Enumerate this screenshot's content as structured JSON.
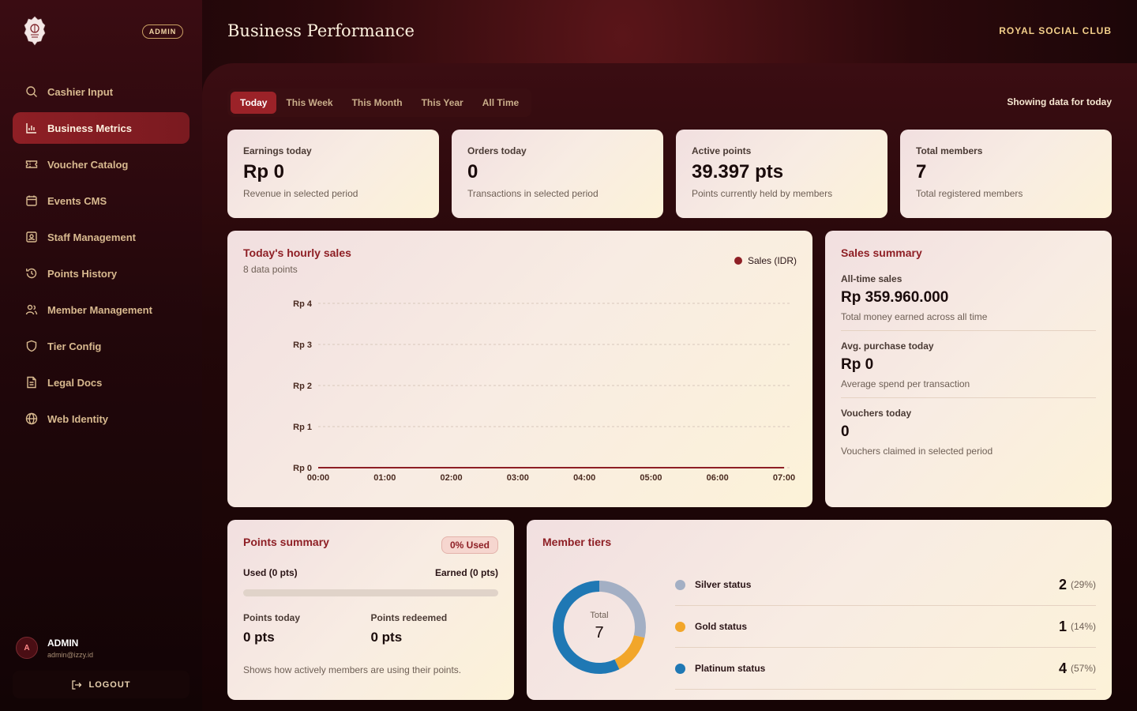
{
  "sidebar": {
    "role_badge": "ADMIN",
    "items": [
      {
        "label": "Cashier Input",
        "icon": "search-icon"
      },
      {
        "label": "Business Metrics",
        "icon": "bar-chart-icon",
        "active": true
      },
      {
        "label": "Voucher Catalog",
        "icon": "ticket-icon"
      },
      {
        "label": "Events CMS",
        "icon": "calendar-icon"
      },
      {
        "label": "Staff Management",
        "icon": "id-badge-icon"
      },
      {
        "label": "Points History",
        "icon": "history-icon"
      },
      {
        "label": "Member Management",
        "icon": "users-icon"
      },
      {
        "label": "Tier Config",
        "icon": "shield-icon"
      },
      {
        "label": "Legal Docs",
        "icon": "document-icon"
      },
      {
        "label": "Web Identity",
        "icon": "globe-icon"
      }
    ],
    "user": {
      "initial": "A",
      "name": "ADMIN",
      "email": "admin@izzy.id"
    },
    "logout_label": "LOGOUT"
  },
  "header": {
    "title": "Business Performance",
    "brand": "ROYAL SOCIAL CLUB"
  },
  "filters": {
    "tabs": [
      "Today",
      "This Week",
      "This Month",
      "This Year",
      "All Time"
    ],
    "active": "Today",
    "status_text": "Showing data for today"
  },
  "stats": [
    {
      "label": "Earnings today",
      "value": "Rp 0",
      "sub": "Revenue in selected period"
    },
    {
      "label": "Orders today",
      "value": "0",
      "sub": "Transactions in selected period"
    },
    {
      "label": "Active points",
      "value": "39.397 pts",
      "sub": "Points currently held by members"
    },
    {
      "label": "Total members",
      "value": "7",
      "sub": "Total registered members"
    }
  ],
  "hourly_chart": {
    "title": "Today's hourly sales",
    "subtitle": "8 data points"
  },
  "chart_data": {
    "type": "line",
    "x": [
      "00:00",
      "01:00",
      "02:00",
      "03:00",
      "04:00",
      "05:00",
      "06:00",
      "07:00"
    ],
    "series": [
      {
        "name": "Sales (IDR)",
        "values": [
          0,
          0,
          0,
          0,
          0,
          0,
          0,
          0
        ]
      }
    ],
    "yticks": [
      "Rp 0",
      "Rp 1",
      "Rp 2",
      "Rp 3",
      "Rp 4"
    ],
    "ylim": [
      0,
      4
    ],
    "grid": true,
    "legend": "top-right",
    "color": "#8e1f25"
  },
  "sales_summary": {
    "title": "Sales summary",
    "blocks": [
      {
        "label": "All-time sales",
        "value": "Rp 359.960.000",
        "sub": "Total money earned across all time"
      },
      {
        "label": "Avg. purchase today",
        "value": "Rp 0",
        "sub": "Average spend per transaction"
      },
      {
        "label": "Vouchers today",
        "value": "0",
        "sub": "Vouchers claimed in selected period"
      }
    ]
  },
  "points_summary": {
    "title": "Points summary",
    "badge": "0% Used",
    "used_label": "Used (0 pts)",
    "earned_label": "Earned (0 pts)",
    "used_fraction": 0,
    "today_label": "Points today",
    "today_value": "0 pts",
    "redeemed_label": "Points redeemed",
    "redeemed_value": "0 pts",
    "note": "Shows how actively members are using their points."
  },
  "member_tiers": {
    "title": "Member tiers",
    "total_label": "Total",
    "total_value": "7",
    "tiers": [
      {
        "name": "Silver status",
        "count": "2",
        "pct": "(29%)",
        "value": 2,
        "color": "#a3afc4"
      },
      {
        "name": "Gold status",
        "count": "1",
        "pct": "(14%)",
        "value": 1,
        "color": "#f2a62a"
      },
      {
        "name": "Platinum status",
        "count": "4",
        "pct": "(57%)",
        "value": 4,
        "color": "#1f78b4"
      }
    ]
  }
}
